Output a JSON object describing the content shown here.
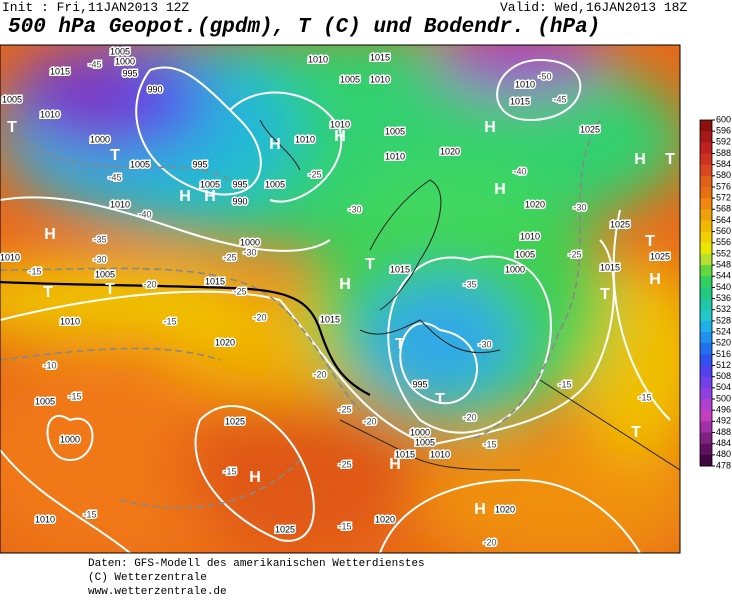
{
  "header": {
    "init": "Init : Fri,11JAN2013 12Z",
    "valid": "Valid: Wed,16JAN2013 18Z",
    "title": "500 hPa Geopot.(gpdm), T (C) und Bodendr. (hPa)"
  },
  "map_labels": [
    "1015",
    "1005",
    "1010",
    "T",
    "-45",
    "1005",
    "1000",
    "995",
    "990",
    "1000",
    "T",
    "1005",
    "-45",
    "995",
    "1005",
    "995",
    "990",
    "H",
    "H",
    "1010",
    "-40",
    "H",
    "-35",
    "1010",
    "-30",
    "-15",
    "1005",
    "T",
    "T",
    "-20",
    "1015",
    "-25",
    "1010",
    "-15",
    "-20",
    "1020",
    "-10",
    "1005",
    "-15",
    "1000",
    "-15",
    "1010",
    "1025",
    "H",
    "-15",
    "1025",
    "-15",
    "1020",
    "-25",
    "1015",
    "1010",
    "-20",
    "995",
    "1000",
    "1005",
    "T",
    "H",
    "-25",
    "-20",
    "-20",
    "1015",
    "H",
    "T",
    "1015",
    "-30",
    "1010",
    "H",
    "1010",
    "1005",
    "1010",
    "-25",
    "H",
    "1005",
    "1000",
    "-30",
    "-25",
    "1010",
    "1005",
    "1015",
    "1010",
    "1020",
    "H",
    "-40",
    "H",
    "1020",
    "-30",
    "1010",
    "1005",
    "1000",
    "-25",
    "1015",
    "T",
    "H",
    "1025",
    "T",
    "1025",
    "H",
    "T",
    "-50",
    "1010",
    "1015",
    "-45",
    "1025",
    "-15",
    "-15",
    "T",
    "1020",
    "-20",
    "H",
    "-30",
    "-15",
    "-35",
    "T"
  ],
  "colorbar": {
    "ticks": [
      600,
      596,
      592,
      588,
      584,
      580,
      576,
      572,
      568,
      564,
      560,
      556,
      552,
      548,
      544,
      540,
      536,
      532,
      528,
      524,
      520,
      516,
      512,
      508,
      504,
      500,
      496,
      492,
      488,
      484,
      480,
      478
    ],
    "colors": [
      "#8c1010",
      "#a81818",
      "#c02020",
      "#d03020",
      "#d84820",
      "#e06018",
      "#e87010",
      "#f08810",
      "#f0a008",
      "#f0b800",
      "#f0d000",
      "#e8e800",
      "#b8e030",
      "#60d840",
      "#30d060",
      "#20c880",
      "#20c8a8",
      "#20c8c8",
      "#20b0e8",
      "#2090f0",
      "#2070f0",
      "#3050f0",
      "#5040f0",
      "#7040e8",
      "#9040e0",
      "#b040d0",
      "#c040c0",
      "#a030a8",
      "#802080",
      "#601060",
      "#400840"
    ]
  },
  "footer": {
    "line1": "Daten: GFS-Modell des amerikanischen Wetterdienstes",
    "line2": "(C) Wetterzentrale",
    "line3": "www.wetterzentrale.de"
  }
}
